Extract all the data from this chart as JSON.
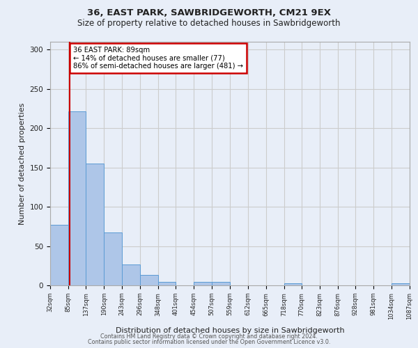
{
  "title1": "36, EAST PARK, SAWBRIDGEWORTH, CM21 9EX",
  "title2": "Size of property relative to detached houses in Sawbridgeworth",
  "xlabel": "Distribution of detached houses by size in Sawbridgeworth",
  "ylabel": "Number of detached properties",
  "footer1": "Contains HM Land Registry data © Crown copyright and database right 2024.",
  "footer2": "Contains public sector information licensed under the Open Government Licence v3.0.",
  "annotation_line1": "36 EAST PARK: 89sqm",
  "annotation_line2": "← 14% of detached houses are smaller (77)",
  "annotation_line3": "86% of semi-detached houses are larger (481) →",
  "subject_value": 89,
  "bar_edges": [
    32,
    85,
    137,
    190,
    243,
    296,
    348,
    401,
    454,
    507,
    559,
    612,
    665,
    718,
    770,
    823,
    876,
    928,
    981,
    1034,
    1087
  ],
  "bar_heights": [
    77,
    221,
    155,
    67,
    27,
    13,
    4,
    0,
    4,
    4,
    0,
    0,
    0,
    3,
    0,
    0,
    0,
    0,
    0,
    3
  ],
  "bar_color": "#aec6e8",
  "bar_edge_color": "#5a9bd4",
  "red_line_color": "#cc0000",
  "annotation_box_color": "#cc0000",
  "grid_color": "#cccccc",
  "background_color": "#e8eef8",
  "ylim": [
    0,
    310
  ],
  "yticks": [
    0,
    50,
    100,
    150,
    200,
    250,
    300
  ]
}
